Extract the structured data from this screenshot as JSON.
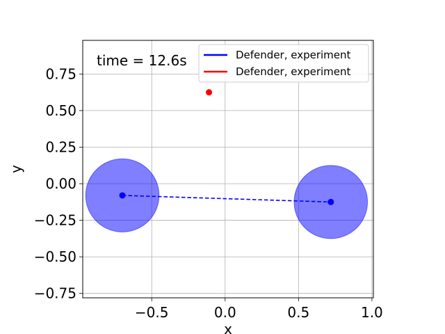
{
  "chart_data": {
    "type": "scatter",
    "title": "",
    "xlabel": "x",
    "ylabel": "y",
    "xlim": [
      -0.97,
      1.01
    ],
    "ylim": [
      -0.78,
      0.98
    ],
    "grid": true,
    "x_ticks": [
      -0.5,
      0.0,
      0.5,
      1.0
    ],
    "x_tick_labels": [
      "−0.5",
      "0.0",
      "0.5",
      "1.0"
    ],
    "y_ticks": [
      0.75,
      0.5,
      0.25,
      0.0,
      -0.25,
      -0.5,
      -0.75
    ],
    "y_tick_labels": [
      "0.75",
      "0.50",
      "0.25",
      "0.00",
      "−0.25",
      "−0.50",
      "−0.75"
    ],
    "annotation": "time = 12.6s",
    "legend": {
      "placement": "top-right",
      "entries": [
        {
          "label": "Defender, experiment",
          "color": "#0000ff"
        },
        {
          "label": "Defender, experiment",
          "color": "#ff0000"
        }
      ]
    },
    "defenders": {
      "color": "#0000ff",
      "capture_radius": 0.25,
      "points": [
        {
          "x": -0.7,
          "y": -0.08
        },
        {
          "x": 0.72,
          "y": -0.125
        }
      ]
    },
    "intruder": {
      "color": "#ff0000",
      "x": -0.11,
      "y": 0.625
    }
  }
}
